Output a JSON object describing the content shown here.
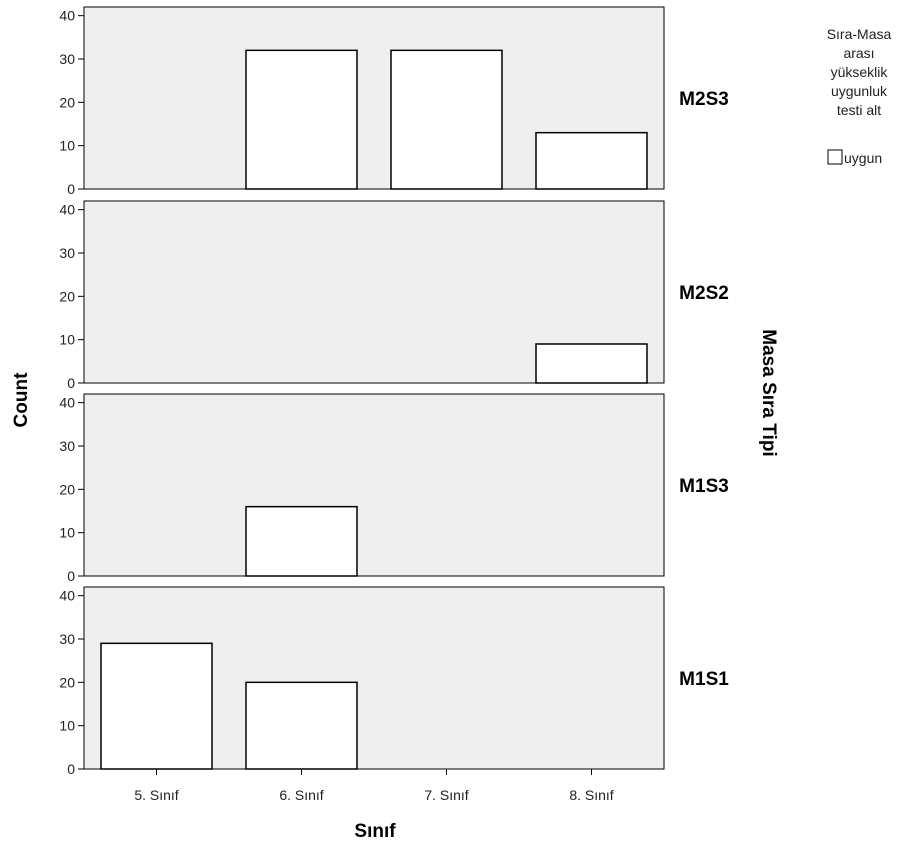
{
  "chart_data": {
    "type": "bar",
    "chart_kind": "paneled bar chart (one panel per Masa Sıra Tipi)",
    "categories": [
      "5. Sınıf",
      "6. Sınıf",
      "7. Sınıf",
      "8. Sınıf"
    ],
    "xlabel": "Sınıf",
    "ylabel": "Count",
    "panel_axis_label": "Masa Sıra Tipi",
    "ylim": [
      0,
      42
    ],
    "yticks": [
      0,
      10,
      20,
      30,
      40
    ],
    "grid": false,
    "legend": {
      "title": "Sıra-Masa arası yükseklik uygunluk testi alt",
      "title_lines": [
        "Sıra-Masa",
        "arası",
        "yükseklik",
        "uygunluk",
        "testi alt"
      ],
      "placement": "top-right",
      "entries": [
        {
          "name": "uygun",
          "color": "#ffffff"
        }
      ]
    },
    "colors": {
      "panel_background": "#efefef",
      "bar_fill": "#ffffff",
      "bar_stroke": "#000000"
    },
    "panels": [
      {
        "name": "M2S3",
        "values": [
          0,
          32,
          32,
          13
        ],
        "values_note": ""
      },
      {
        "name": "M2S2",
        "values": [
          0,
          0,
          0,
          9
        ]
      },
      {
        "name": "M1S3",
        "values": [
          0,
          16,
          0,
          0
        ]
      },
      {
        "name": "M1S1",
        "values": [
          29,
          20,
          0,
          0
        ]
      }
    ]
  }
}
